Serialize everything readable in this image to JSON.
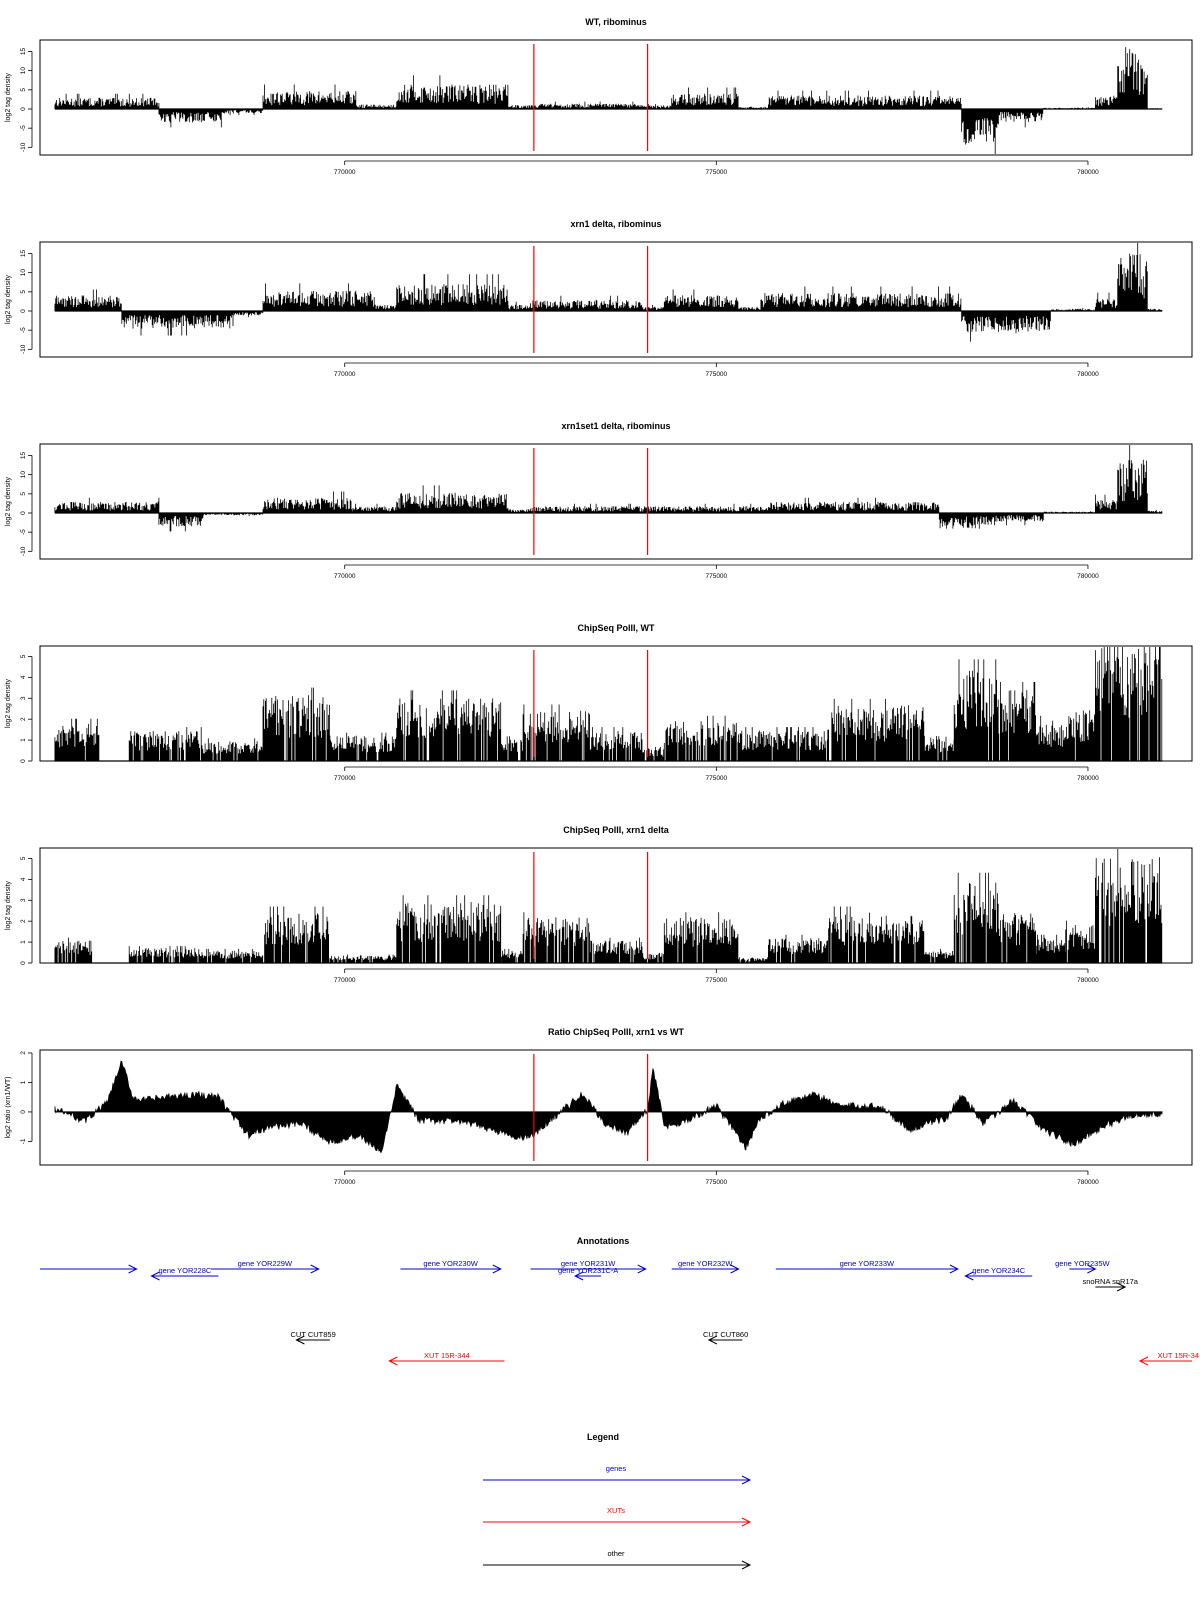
{
  "chart_data": [
    {
      "type": "bar",
      "title": "WT, ribominus",
      "ylabel": "log2 tag density",
      "ylim": [
        -12,
        18
      ],
      "yticks": [
        -10,
        -5,
        0,
        5,
        10,
        15
      ],
      "xlim": [
        765900,
        781400
      ],
      "xticks": [
        770000,
        775000,
        780000
      ],
      "markers": [
        772545,
        774075
      ],
      "segments": [
        {
          "from": 766100,
          "to": 767500,
          "value": 2.5
        },
        {
          "from": 767500,
          "to": 768350,
          "value": -3.0
        },
        {
          "from": 768350,
          "to": 768900,
          "value": -1.0
        },
        {
          "from": 768900,
          "to": 770150,
          "value": 4.0
        },
        {
          "from": 770150,
          "to": 770700,
          "value": 1.0
        },
        {
          "from": 770700,
          "to": 772200,
          "value": 5.5
        },
        {
          "from": 772200,
          "to": 772500,
          "value": 1.0
        },
        {
          "from": 772500,
          "to": 774000,
          "value": 1.2
        },
        {
          "from": 774000,
          "to": 774400,
          "value": 0.8
        },
        {
          "from": 774400,
          "to": 775300,
          "value": 3.5
        },
        {
          "from": 775300,
          "to": 775700,
          "value": 0.5
        },
        {
          "from": 775700,
          "to": 778300,
          "value": 3.0
        },
        {
          "from": 778300,
          "to": 778800,
          "value": -8.0
        },
        {
          "from": 778800,
          "to": 779400,
          "value": -3.0
        },
        {
          "from": 779400,
          "to": 780100,
          "value": 0.3
        },
        {
          "from": 780100,
          "to": 780400,
          "value": 3.0
        },
        {
          "from": 780400,
          "to": 780800,
          "value": 14.0
        },
        {
          "from": 780800,
          "to": 781000,
          "value": 0.2
        }
      ]
    },
    {
      "type": "bar",
      "title": "xrn1 delta, ribominus",
      "ylabel": "log2 tag density",
      "ylim": [
        -12,
        18
      ],
      "yticks": [
        -10,
        -5,
        0,
        5,
        10,
        15
      ],
      "xlim": [
        765900,
        781400
      ],
      "xticks": [
        770000,
        775000,
        780000
      ],
      "markers": [
        772545,
        774075
      ],
      "segments": [
        {
          "from": 766100,
          "to": 767000,
          "value": 3.5
        },
        {
          "from": 767000,
          "to": 768500,
          "value": -4.0
        },
        {
          "from": 768500,
          "to": 768900,
          "value": -1.0
        },
        {
          "from": 768900,
          "to": 770400,
          "value": 4.5
        },
        {
          "from": 770400,
          "to": 770700,
          "value": 1.5
        },
        {
          "from": 770700,
          "to": 772200,
          "value": 6.0
        },
        {
          "from": 772200,
          "to": 772500,
          "value": 1.5
        },
        {
          "from": 772500,
          "to": 774000,
          "value": 2.5
        },
        {
          "from": 774000,
          "to": 774300,
          "value": 1.0
        },
        {
          "from": 774300,
          "to": 775300,
          "value": 3.5
        },
        {
          "from": 775300,
          "to": 775600,
          "value": 1.0
        },
        {
          "from": 775600,
          "to": 778300,
          "value": 4.0
        },
        {
          "from": 778300,
          "to": 779500,
          "value": -5.0
        },
        {
          "from": 779500,
          "to": 780100,
          "value": 0.5
        },
        {
          "from": 780100,
          "to": 780400,
          "value": 3.0
        },
        {
          "from": 780400,
          "to": 780800,
          "value": 13.0
        },
        {
          "from": 780800,
          "to": 781000,
          "value": 0.5
        }
      ]
    },
    {
      "type": "bar",
      "title": "xrn1set1 delta, ribominus",
      "ylabel": "log2 tag density",
      "ylim": [
        -12,
        18
      ],
      "yticks": [
        -10,
        -5,
        0,
        5,
        10,
        15
      ],
      "xlim": [
        765900,
        781400
      ],
      "xticks": [
        770000,
        775000,
        780000
      ],
      "markers": [
        772545,
        774075
      ],
      "segments": [
        {
          "from": 766100,
          "to": 767500,
          "value": 2.5
        },
        {
          "from": 767500,
          "to": 768100,
          "value": -3.0
        },
        {
          "from": 768100,
          "to": 768900,
          "value": -0.5
        },
        {
          "from": 768900,
          "to": 770100,
          "value": 3.5
        },
        {
          "from": 770100,
          "to": 770700,
          "value": 1.5
        },
        {
          "from": 770700,
          "to": 772200,
          "value": 4.5
        },
        {
          "from": 772200,
          "to": 772500,
          "value": 1.0
        },
        {
          "from": 772500,
          "to": 774000,
          "value": 1.5
        },
        {
          "from": 774000,
          "to": 775700,
          "value": 1.5
        },
        {
          "from": 775700,
          "to": 778000,
          "value": 2.5
        },
        {
          "from": 778000,
          "to": 778700,
          "value": -3.5
        },
        {
          "from": 778700,
          "to": 779400,
          "value": -2.0
        },
        {
          "from": 779400,
          "to": 780100,
          "value": 0.3
        },
        {
          "from": 780100,
          "to": 780400,
          "value": 3.0
        },
        {
          "from": 780400,
          "to": 780800,
          "value": 12.0
        },
        {
          "from": 780800,
          "to": 781000,
          "value": 0.5
        }
      ]
    },
    {
      "type": "bar",
      "title": "ChipSeq PolII, WT",
      "ylabel": "log2 tag density",
      "ylim": [
        0,
        5.5
      ],
      "yticks": [
        0,
        1,
        2,
        3,
        4,
        5
      ],
      "xlim": [
        765900,
        781400
      ],
      "xticks": [
        770000,
        775000,
        780000
      ],
      "markers": [
        772545,
        774075
      ],
      "segments": [
        {
          "from": 766100,
          "to": 766700,
          "value": 1.5
        },
        {
          "from": 766700,
          "to": 767100,
          "value": 0
        },
        {
          "from": 767100,
          "to": 768100,
          "value": 1.2
        },
        {
          "from": 768100,
          "to": 768900,
          "value": 0.8
        },
        {
          "from": 768900,
          "to": 769800,
          "value": 2.6
        },
        {
          "from": 769800,
          "to": 770700,
          "value": 1.0
        },
        {
          "from": 770700,
          "to": 772100,
          "value": 2.5
        },
        {
          "from": 772100,
          "to": 772400,
          "value": 1.0
        },
        {
          "from": 772400,
          "to": 773300,
          "value": 2.0
        },
        {
          "from": 773300,
          "to": 774000,
          "value": 1.2
        },
        {
          "from": 774000,
          "to": 774300,
          "value": 0.5
        },
        {
          "from": 774300,
          "to": 775300,
          "value": 1.6
        },
        {
          "from": 775300,
          "to": 776500,
          "value": 1.2
        },
        {
          "from": 776500,
          "to": 777800,
          "value": 2.2
        },
        {
          "from": 777800,
          "to": 778200,
          "value": 1.0
        },
        {
          "from": 778200,
          "to": 778800,
          "value": 3.6
        },
        {
          "from": 778800,
          "to": 779300,
          "value": 2.8
        },
        {
          "from": 779300,
          "to": 779700,
          "value": 1.6
        },
        {
          "from": 779700,
          "to": 780100,
          "value": 2.0
        },
        {
          "from": 780100,
          "to": 781000,
          "value": 4.6
        }
      ]
    },
    {
      "type": "bar",
      "title": "ChipSeq PolII, xrn1 delta",
      "ylabel": "log2 tag density",
      "ylim": [
        0,
        5.5
      ],
      "yticks": [
        0,
        1,
        2,
        3,
        4,
        5
      ],
      "xlim": [
        765900,
        781400
      ],
      "xticks": [
        770000,
        775000,
        780000
      ],
      "markers": [
        772545,
        774075
      ],
      "segments": [
        {
          "from": 766100,
          "to": 766600,
          "value": 0.9
        },
        {
          "from": 766600,
          "to": 767100,
          "value": 0
        },
        {
          "from": 767100,
          "to": 768100,
          "value": 0.6
        },
        {
          "from": 768100,
          "to": 768900,
          "value": 0.5
        },
        {
          "from": 768900,
          "to": 769800,
          "value": 2.0
        },
        {
          "from": 769800,
          "to": 770700,
          "value": 0.3
        },
        {
          "from": 770700,
          "to": 772100,
          "value": 2.4
        },
        {
          "from": 772100,
          "to": 772400,
          "value": 0.5
        },
        {
          "from": 772400,
          "to": 773300,
          "value": 1.8
        },
        {
          "from": 773300,
          "to": 774000,
          "value": 0.9
        },
        {
          "from": 774000,
          "to": 774300,
          "value": 0.4
        },
        {
          "from": 774300,
          "to": 775300,
          "value": 1.8
        },
        {
          "from": 775300,
          "to": 775700,
          "value": 0.2
        },
        {
          "from": 775700,
          "to": 776500,
          "value": 1.0
        },
        {
          "from": 776500,
          "to": 777800,
          "value": 2.0
        },
        {
          "from": 777800,
          "to": 778200,
          "value": 0.5
        },
        {
          "from": 778200,
          "to": 778800,
          "value": 3.2
        },
        {
          "from": 778800,
          "to": 779300,
          "value": 2.0
        },
        {
          "from": 779300,
          "to": 779700,
          "value": 1.0
        },
        {
          "from": 779700,
          "to": 780100,
          "value": 1.5
        },
        {
          "from": 780100,
          "to": 781000,
          "value": 4.2
        }
      ]
    },
    {
      "type": "area",
      "title": "Ratio ChipSeq PolII, xrn1 vs WT",
      "ylabel": "log2 ratio (xrn1/WT)",
      "ylim": [
        -1.8,
        2.1
      ],
      "yticks": [
        -1,
        0,
        1,
        2
      ],
      "xlim": [
        765900,
        781400
      ],
      "xticks": [
        770000,
        775000,
        780000
      ],
      "markers": [
        772545,
        774075
      ],
      "x": [
        766100,
        766500,
        766800,
        767000,
        767150,
        767300,
        767600,
        768000,
        768300,
        768700,
        769000,
        769400,
        769800,
        770200,
        770500,
        770700,
        771000,
        771500,
        772000,
        772300,
        772545,
        772800,
        773200,
        773500,
        773800,
        774075,
        774150,
        774300,
        774600,
        775000,
        775400,
        775600,
        775900,
        776300,
        776700,
        777200,
        777600,
        778100,
        778300,
        778600,
        779000,
        779400,
        779800,
        780200,
        780600,
        781000
      ],
      "values": [
        0.1,
        -0.3,
        0.3,
        1.7,
        0.5,
        0.4,
        0.5,
        0.6,
        0.5,
        -0.8,
        -0.5,
        -0.4,
        -1.0,
        -0.8,
        -1.4,
        0.9,
        -0.3,
        -0.3,
        -0.6,
        -0.9,
        -0.8,
        -0.2,
        0.6,
        -0.4,
        -0.7,
        0.1,
        1.5,
        -0.5,
        -0.3,
        0.2,
        -1.2,
        -0.2,
        0.3,
        0.6,
        0.2,
        0.2,
        -0.6,
        -0.2,
        0.6,
        -0.4,
        0.4,
        -0.6,
        -1.1,
        -0.5,
        -0.1,
        -0.1
      ]
    }
  ],
  "annotations": {
    "title": "Annotations",
    "features": [
      {
        "label": "",
        "type": "gene",
        "start": 765900,
        "end": 767200,
        "strand": "+",
        "row": 0
      },
      {
        "label": "gene YOR228C",
        "type": "gene",
        "start": 767400,
        "end": 768300,
        "strand": "-",
        "row": 1
      },
      {
        "label": "gene YOR229W",
        "type": "gene",
        "start": 768200,
        "end": 769650,
        "strand": "+",
        "row": 0
      },
      {
        "label": "gene YOR230W",
        "type": "gene",
        "start": 770750,
        "end": 772100,
        "strand": "+",
        "row": 0
      },
      {
        "label": "gene YOR231W",
        "type": "gene",
        "start": 772500,
        "end": 774050,
        "strand": "+",
        "row": 0
      },
      {
        "label": "gene YOR231C-A",
        "type": "gene",
        "start": 773100,
        "end": 773450,
        "strand": "-",
        "row": 1
      },
      {
        "label": "gene YOR232W",
        "type": "gene",
        "start": 774400,
        "end": 775300,
        "strand": "+",
        "row": 0
      },
      {
        "label": "gene YOR233W",
        "type": "gene",
        "start": 775800,
        "end": 778250,
        "strand": "+",
        "row": 0
      },
      {
        "label": "gene YOR234C",
        "type": "gene",
        "start": 778350,
        "end": 779250,
        "strand": "-",
        "row": 1
      },
      {
        "label": "gene YOR235W",
        "type": "gene",
        "start": 779750,
        "end": 780100,
        "strand": "+",
        "row": 0
      },
      {
        "label": "snoRNA snR17a",
        "type": "other",
        "start": 780100,
        "end": 780500,
        "strand": "+",
        "row": 2
      },
      {
        "label": "CUT CUT859",
        "type": "other",
        "start": 769350,
        "end": 769800,
        "strand": "-",
        "row": 3
      },
      {
        "label": "CUT CUT860",
        "type": "other",
        "start": 774900,
        "end": 775350,
        "strand": "-",
        "row": 3
      },
      {
        "label": "XUT 15R-344",
        "type": "xut",
        "start": 770600,
        "end": 772150,
        "strand": "-",
        "row": 4
      },
      {
        "label": "XUT 15R-34",
        "type": "xut",
        "start": 780700,
        "end": 781400,
        "strand": "-",
        "row": 4
      }
    ]
  },
  "legend": {
    "title": "Legend",
    "items": [
      {
        "label": "genes",
        "color": "#0000cc"
      },
      {
        "label": "XUTs",
        "color": "#ff0000"
      },
      {
        "label": "other",
        "color": "#000000"
      }
    ]
  }
}
